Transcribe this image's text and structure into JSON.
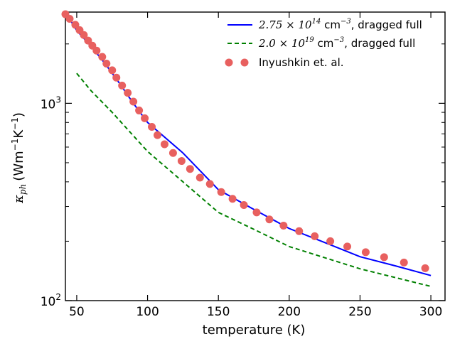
{
  "chart_data": {
    "type": "line",
    "xlabel": "temperature (K)",
    "ylabel": "κ_ph (Wm⁻¹K⁻¹)",
    "ylabel_main": "κ",
    "ylabel_sub": "ph",
    "ylabel_units": "(Wm",
    "ylabel_units_sup1": "−1",
    "ylabel_units_mid": "K",
    "ylabel_units_sup2": "−1",
    "ylabel_units_end": ")",
    "xlim": [
      42,
      310
    ],
    "ylim": [
      100,
      2900
    ],
    "yscale": "log",
    "grid": false,
    "legend_position": "top-right",
    "x_ticks": [
      50,
      100,
      150,
      200,
      250,
      300
    ],
    "x_tick_labels": [
      "50",
      "100",
      "150",
      "200",
      "250",
      "300"
    ],
    "y_major_ticks": [
      {
        "value": 100,
        "base": "10",
        "exp": "2"
      },
      {
        "value": 1000,
        "base": "10",
        "exp": "3"
      }
    ],
    "y_minor_ticks": [
      200,
      300,
      400,
      500,
      600,
      700,
      800,
      900,
      2000
    ],
    "series": [
      {
        "name": "2.75 × 10^14 cm^-3, dragged full",
        "legend_math": "2.75 × 10",
        "legend_exp": "14",
        "legend_unit": " cm",
        "legend_unit_exp": "−3",
        "legend_rest": ", dragged full",
        "style": "solid",
        "color": "#0000ff",
        "x": [
          42,
          50,
          60,
          70,
          80,
          90,
          100,
          125,
          150,
          175,
          200,
          225,
          250,
          275,
          300
        ],
        "y": [
          2900,
          2340,
          1950,
          1590,
          1270,
          1000,
          800,
          560,
          365,
          290,
          232,
          197,
          167,
          150,
          134
        ]
      },
      {
        "name": "2.0 × 10^19 cm^-3, dragged full",
        "legend_math": "2.0 × 10",
        "legend_exp": "19",
        "legend_unit": " cm",
        "legend_unit_exp": "−3",
        "legend_rest": ", dragged full",
        "style": "dashed",
        "color": "#008000",
        "x": [
          50,
          60,
          75,
          100,
          125,
          150,
          175,
          200,
          250,
          300
        ],
        "y": [
          1420,
          1160,
          900,
          570,
          400,
          280,
          230,
          188,
          145,
          118
        ]
      },
      {
        "name": "Inyushkin et. al.",
        "legend_text": "Inyushkin et. al.",
        "style": "markers",
        "color": "#e8605f",
        "x": [
          42,
          45,
          49,
          52,
          55,
          58,
          61,
          64,
          68,
          71,
          75,
          78,
          82,
          86,
          90,
          94,
          98,
          103,
          107,
          112,
          118,
          124,
          130,
          137,
          144,
          152,
          160,
          168,
          177,
          186,
          196,
          207,
          218,
          229,
          241,
          254,
          267,
          281,
          296
        ],
        "y": [
          2830,
          2680,
          2500,
          2350,
          2220,
          2080,
          1960,
          1850,
          1720,
          1590,
          1470,
          1350,
          1230,
          1130,
          1020,
          920,
          840,
          760,
          690,
          620,
          560,
          510,
          465,
          420,
          390,
          355,
          328,
          305,
          280,
          258,
          240,
          225,
          212,
          200,
          188,
          176,
          166,
          156,
          146
        ]
      }
    ]
  }
}
